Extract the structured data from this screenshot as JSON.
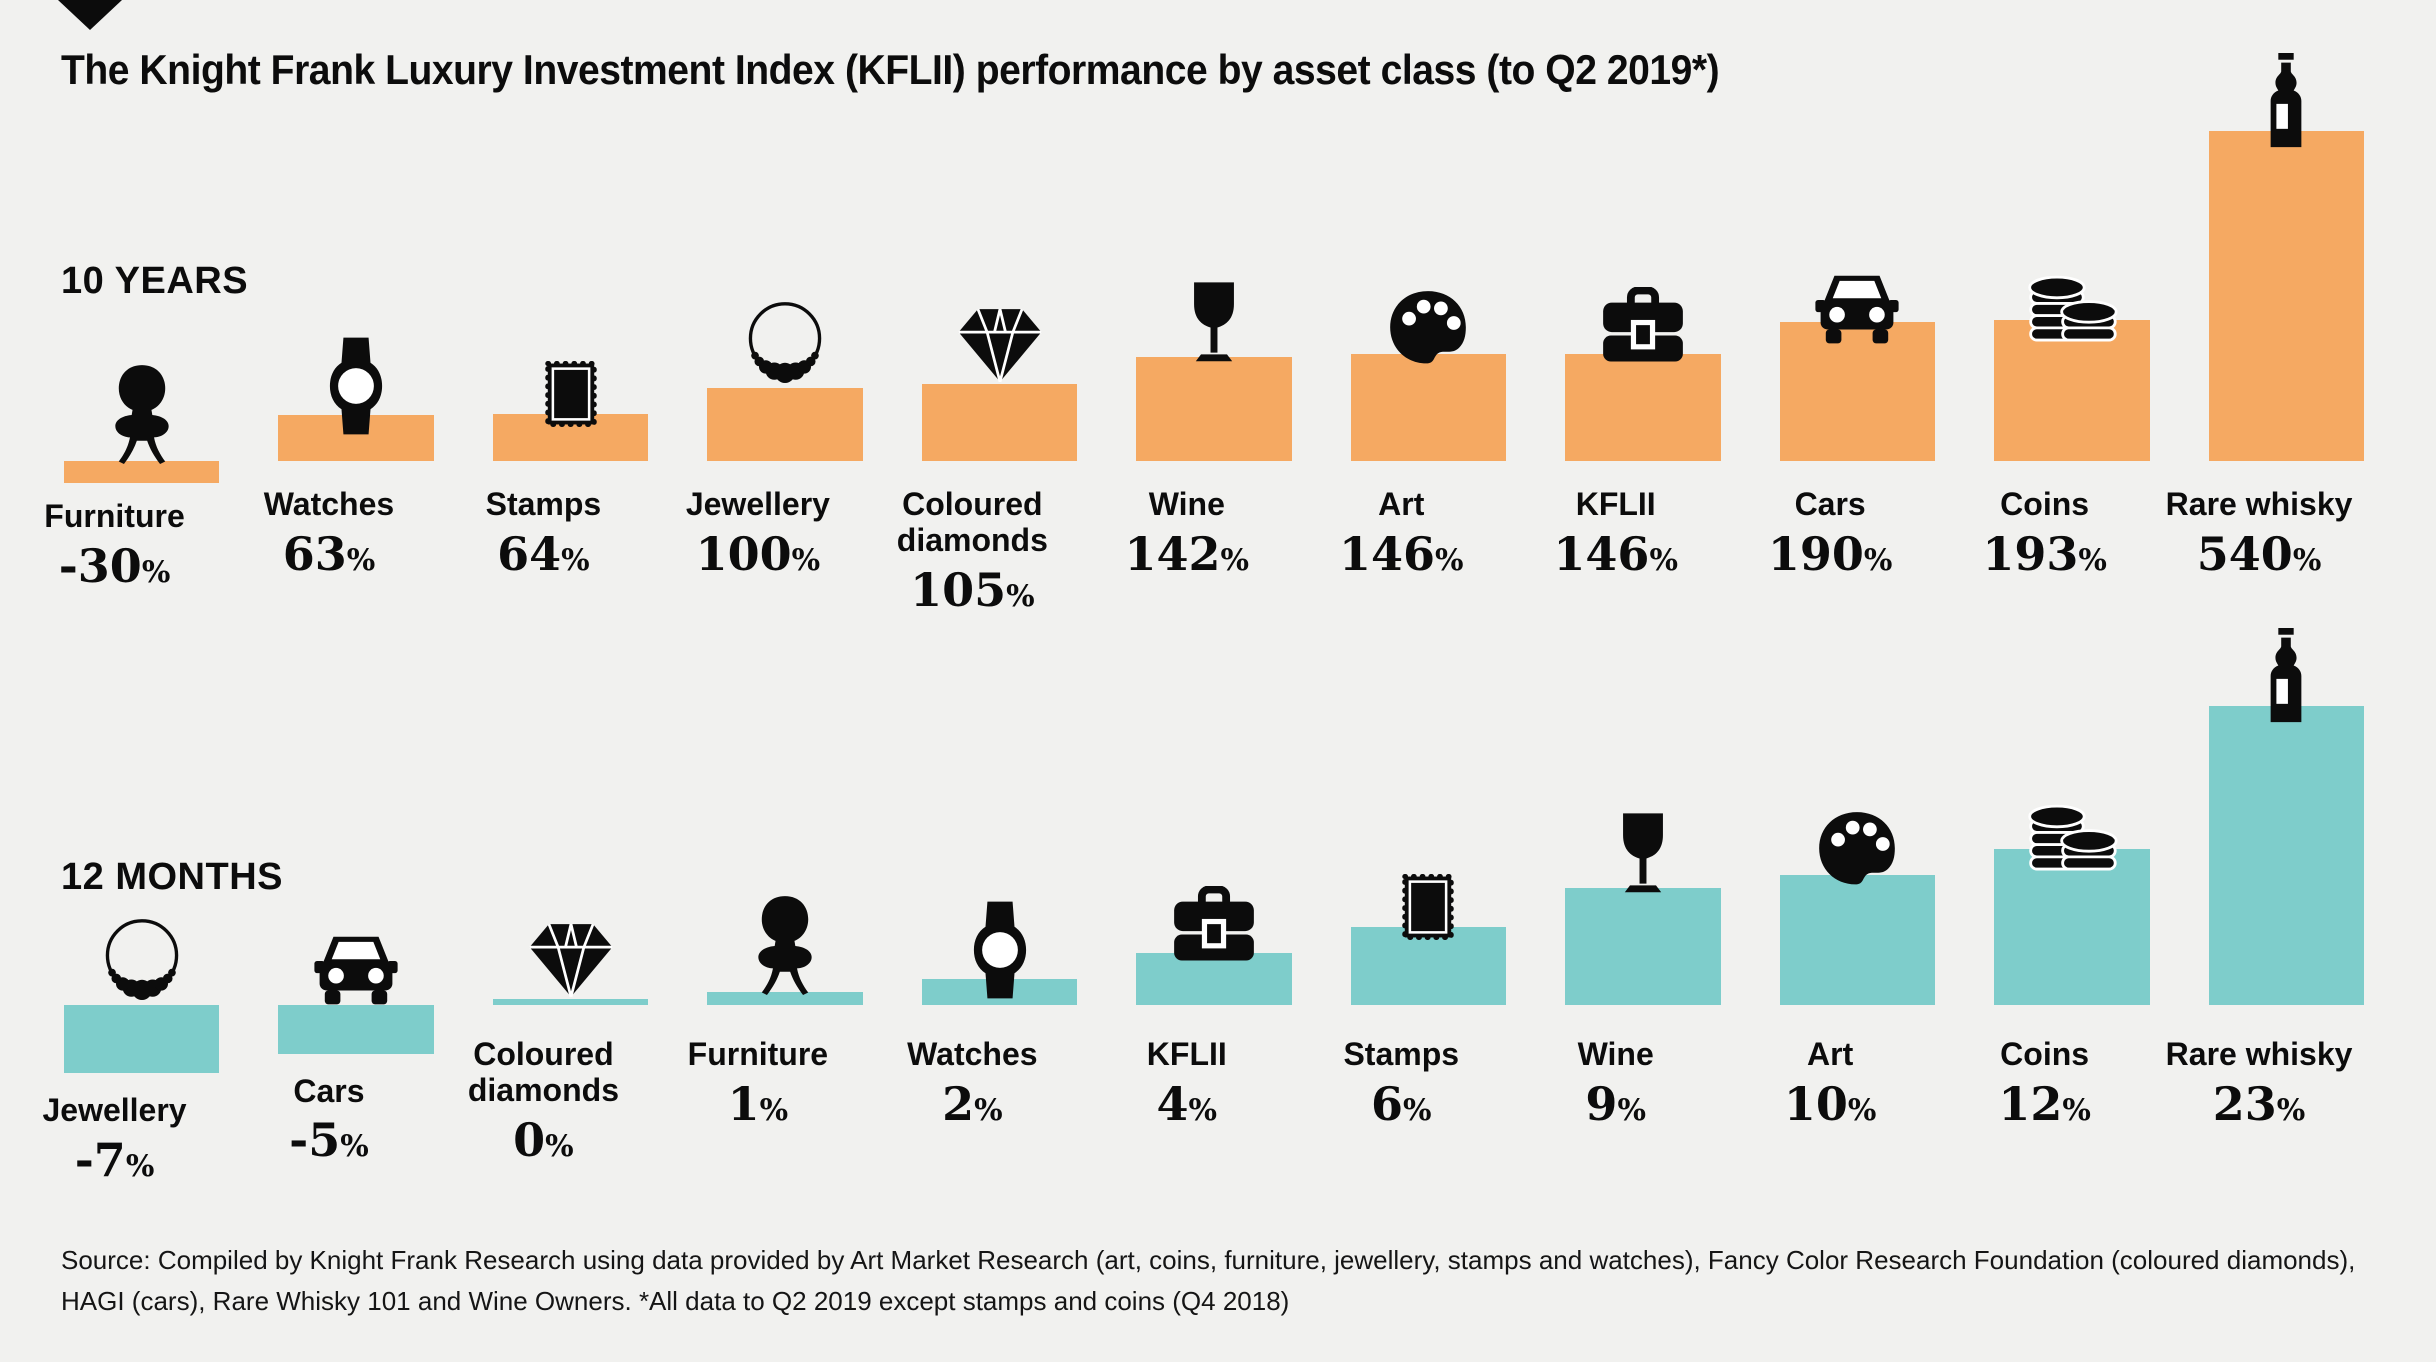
{
  "page": {
    "title": "The Knight Frank Luxury Investment Index (KFLII) performance by asset class (to Q2 2019*)",
    "source_line1": "Source: Compiled by Knight Frank Research using data provided by Art Market Research (art, coins, furniture, jewellery, stamps and watches), Fancy Color Research Foundation (coloured diamonds),",
    "source_line2": "HAGI (cars), Rare Whisky 101 and Wine Owners. *All data to Q2 2019 except stamps and coins (Q4 2018)",
    "colors": {
      "background": "#F1F1EF",
      "bar_10_years": "#F5A962",
      "bar_12_months": "#7ECDCB",
      "text": "#0C0C0C"
    }
  },
  "chart_data": [
    {
      "type": "bar",
      "title": "10 YEARS",
      "unit": "%",
      "bar_color": "#F5A962",
      "categories": [
        "Furniture",
        "Watches",
        "Stamps",
        "Jewellery",
        "Coloured diamonds",
        "Wine",
        "Art",
        "KFLII",
        "Cars",
        "Coins",
        "Rare whisky"
      ],
      "values": [
        -30,
        63,
        64,
        100,
        105,
        142,
        146,
        146,
        190,
        193,
        540
      ],
      "icons": [
        "chair",
        "watch",
        "stamp",
        "necklace",
        "diamond",
        "wine",
        "palette",
        "briefcase",
        "car",
        "coins",
        "bottle"
      ]
    },
    {
      "type": "bar",
      "title": "12 MONTHS",
      "unit": "%",
      "bar_color": "#7ECDCB",
      "categories": [
        "Jewellery",
        "Cars",
        "Coloured diamonds",
        "Furniture",
        "Watches",
        "KFLII",
        "Stamps",
        "Wine",
        "Art",
        "Coins",
        "Rare whisky"
      ],
      "values": [
        -7,
        -5,
        0,
        1,
        2,
        4,
        6,
        9,
        10,
        12,
        23
      ],
      "icons": [
        "necklace",
        "car",
        "diamond",
        "chair",
        "watch",
        "briefcase",
        "stamp",
        "wine",
        "palette",
        "coins",
        "bottle"
      ]
    }
  ]
}
